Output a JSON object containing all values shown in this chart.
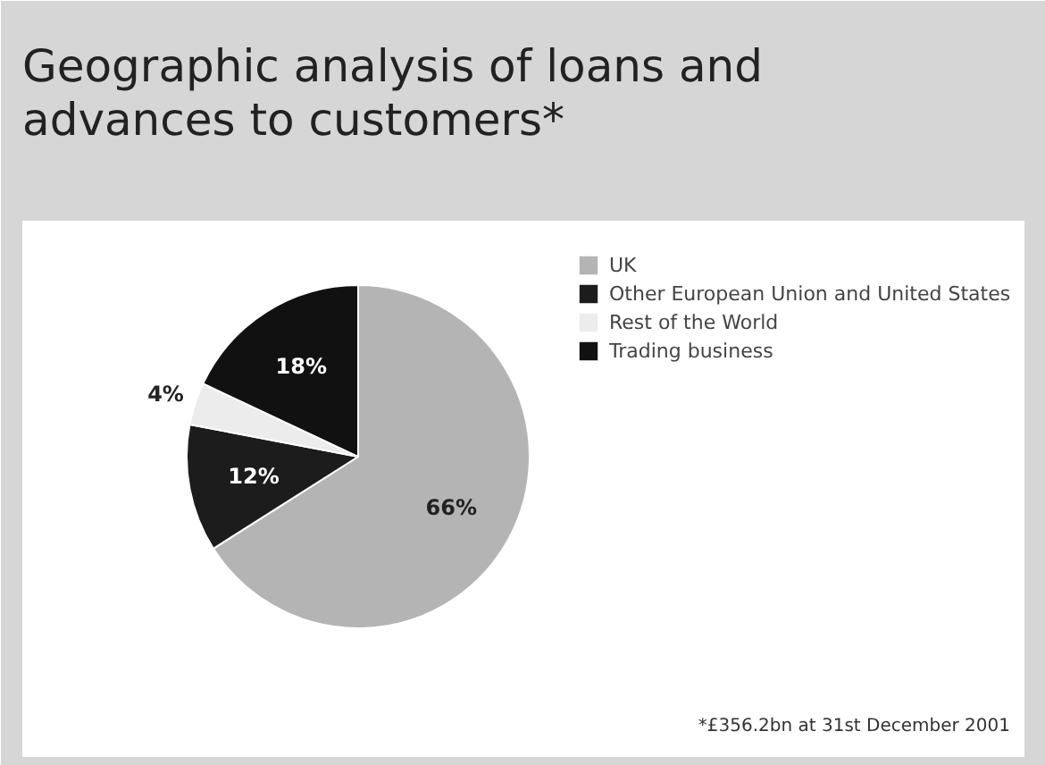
{
  "chart_data": {
    "type": "pie",
    "title": "Geographic analysis of loans and advances to customers*",
    "categories": [
      "UK",
      "Other European Union and United States",
      "Rest of the World",
      "Trading business"
    ],
    "values": [
      66,
      12,
      4,
      18
    ],
    "colors": [
      "#b4b4b4",
      "#1c1c1c",
      "#ececec",
      "#111111"
    ],
    "value_labels": [
      "66%",
      "12%",
      "4%",
      "18%"
    ],
    "legend": "right",
    "annotations": [
      "*£356.2bn at 31st December 2001"
    ]
  }
}
